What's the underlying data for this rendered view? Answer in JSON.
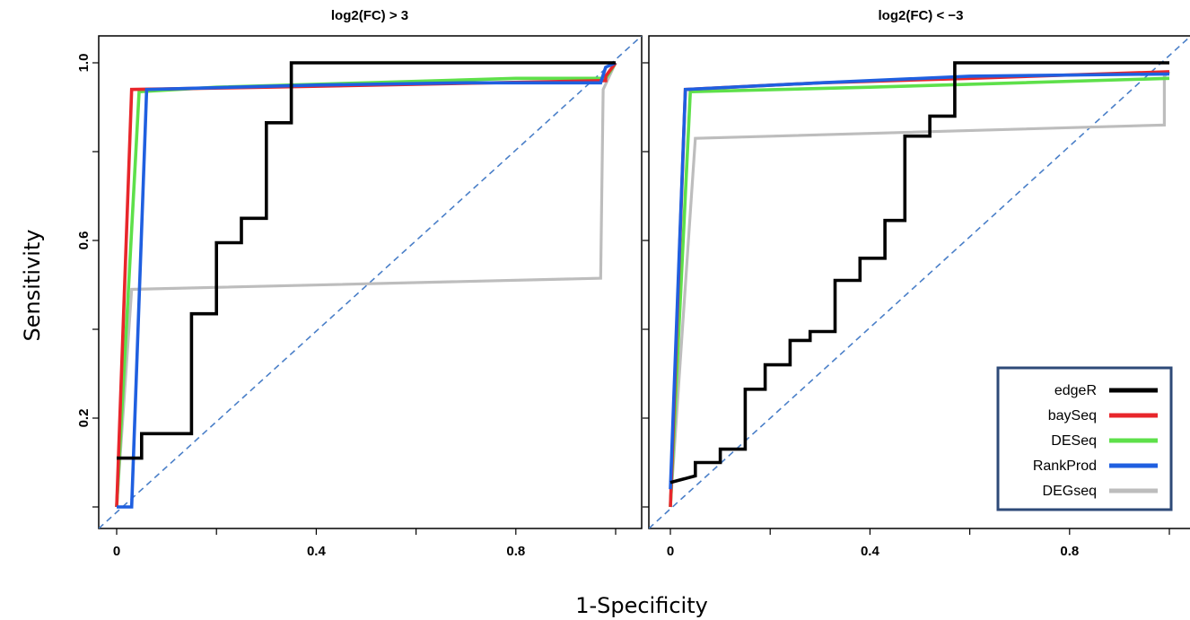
{
  "figure": {
    "ylabel": "Sensitivity",
    "xlabel": "1-Specificity"
  },
  "legend": {
    "placement": "bottom-right of right panel",
    "entries": [
      {
        "label": "edgeR",
        "color": "#000000"
      },
      {
        "label": "baySeq",
        "color": "#e8262b"
      },
      {
        "label": "DESeq",
        "color": "#5ee04a"
      },
      {
        "label": "RankProd",
        "color": "#1f5fe0"
      },
      {
        "label": "DEGseq",
        "color": "#bdbdbd"
      }
    ]
  },
  "chart_data": [
    {
      "type": "line",
      "title": "log2(FC) > 3",
      "x_ticks": [
        "0",
        "0.4",
        "0.8"
      ],
      "y_ticks": [
        "0.2",
        "0.6",
        "1.0"
      ],
      "xlim": [
        0,
        1
      ],
      "ylim": [
        0,
        1
      ],
      "diagonal": {
        "color": "#4a7fc8",
        "style": "dashed"
      },
      "series": [
        {
          "name": "edgeR",
          "color": "#000000",
          "points": [
            [
              0,
              0.11
            ],
            [
              0.05,
              0.11
            ],
            [
              0.05,
              0.165
            ],
            [
              0.15,
              0.165
            ],
            [
              0.15,
              0.435
            ],
            [
              0.2,
              0.435
            ],
            [
              0.2,
              0.595
            ],
            [
              0.25,
              0.595
            ],
            [
              0.25,
              0.65
            ],
            [
              0.3,
              0.65
            ],
            [
              0.3,
              0.865
            ],
            [
              0.35,
              0.865
            ],
            [
              0.35,
              1.0
            ],
            [
              1.0,
              1.0
            ]
          ]
        },
        {
          "name": "baySeq",
          "color": "#e8262b",
          "points": [
            [
              0,
              0
            ],
            [
              0.03,
              0.94
            ],
            [
              0.3,
              0.945
            ],
            [
              0.98,
              0.96
            ],
            [
              0.98,
              0.97
            ],
            [
              1.0,
              1.0
            ]
          ]
        },
        {
          "name": "DESeq",
          "color": "#5ee04a",
          "points": [
            [
              0,
              0
            ],
            [
              0.045,
              0.935
            ],
            [
              0.2,
              0.945
            ],
            [
              0.5,
              0.955
            ],
            [
              0.8,
              0.965
            ],
            [
              0.98,
              0.965
            ],
            [
              1.0,
              1.0
            ]
          ]
        },
        {
          "name": "RankProd",
          "color": "#1f5fe0",
          "points": [
            [
              0,
              0
            ],
            [
              0.03,
              0
            ],
            [
              0.06,
              0.94
            ],
            [
              0.4,
              0.95
            ],
            [
              0.7,
              0.955
            ],
            [
              0.97,
              0.955
            ],
            [
              0.98,
              0.99
            ],
            [
              1.0,
              1.0
            ]
          ]
        },
        {
          "name": "DEGseq",
          "color": "#bdbdbd",
          "points": [
            [
              0,
              0
            ],
            [
              0.03,
              0.49
            ],
            [
              0.97,
              0.515
            ],
            [
              0.975,
              0.94
            ],
            [
              1.0,
              1.0
            ]
          ]
        }
      ]
    },
    {
      "type": "line",
      "title": "log2(FC) < −3",
      "x_ticks": [
        "0",
        "0.4",
        "0.8"
      ],
      "y_ticks": [],
      "xlim": [
        0,
        1
      ],
      "ylim": [
        0,
        1
      ],
      "diagonal": {
        "color": "#4a7fc8",
        "style": "dashed"
      },
      "series": [
        {
          "name": "edgeR",
          "color": "#000000",
          "points": [
            [
              0,
              0.055
            ],
            [
              0.05,
              0.07
            ],
            [
              0.05,
              0.1
            ],
            [
              0.1,
              0.1
            ],
            [
              0.1,
              0.13
            ],
            [
              0.15,
              0.13
            ],
            [
              0.15,
              0.265
            ],
            [
              0.19,
              0.265
            ],
            [
              0.19,
              0.32
            ],
            [
              0.24,
              0.32
            ],
            [
              0.24,
              0.375
            ],
            [
              0.28,
              0.375
            ],
            [
              0.28,
              0.395
            ],
            [
              0.33,
              0.395
            ],
            [
              0.33,
              0.51
            ],
            [
              0.38,
              0.51
            ],
            [
              0.38,
              0.56
            ],
            [
              0.43,
              0.56
            ],
            [
              0.43,
              0.645
            ],
            [
              0.47,
              0.645
            ],
            [
              0.47,
              0.835
            ],
            [
              0.52,
              0.835
            ],
            [
              0.52,
              0.88
            ],
            [
              0.57,
              0.88
            ],
            [
              0.57,
              1.0
            ],
            [
              1.0,
              1.0
            ]
          ]
        },
        {
          "name": "baySeq",
          "color": "#e8262b",
          "points": [
            [
              0,
              0
            ],
            [
              0.03,
              0.94
            ],
            [
              0.3,
              0.955
            ],
            [
              0.6,
              0.965
            ],
            [
              1.0,
              0.98
            ]
          ]
        },
        {
          "name": "DESeq",
          "color": "#5ee04a",
          "points": [
            [
              0,
              0
            ],
            [
              0.04,
              0.935
            ],
            [
              0.4,
              0.945
            ],
            [
              0.7,
              0.955
            ],
            [
              1.0,
              0.965
            ]
          ]
        },
        {
          "name": "RankProd",
          "color": "#1f5fe0",
          "points": [
            [
              0,
              0.04
            ],
            [
              0.03,
              0.94
            ],
            [
              0.3,
              0.955
            ],
            [
              0.6,
              0.97
            ],
            [
              1.0,
              0.975
            ]
          ]
        },
        {
          "name": "DEGseq",
          "color": "#bdbdbd",
          "points": [
            [
              0,
              0
            ],
            [
              0.05,
              0.83
            ],
            [
              0.99,
              0.86
            ],
            [
              0.99,
              0.97
            ],
            [
              1.0,
              0.98
            ]
          ]
        }
      ]
    }
  ]
}
